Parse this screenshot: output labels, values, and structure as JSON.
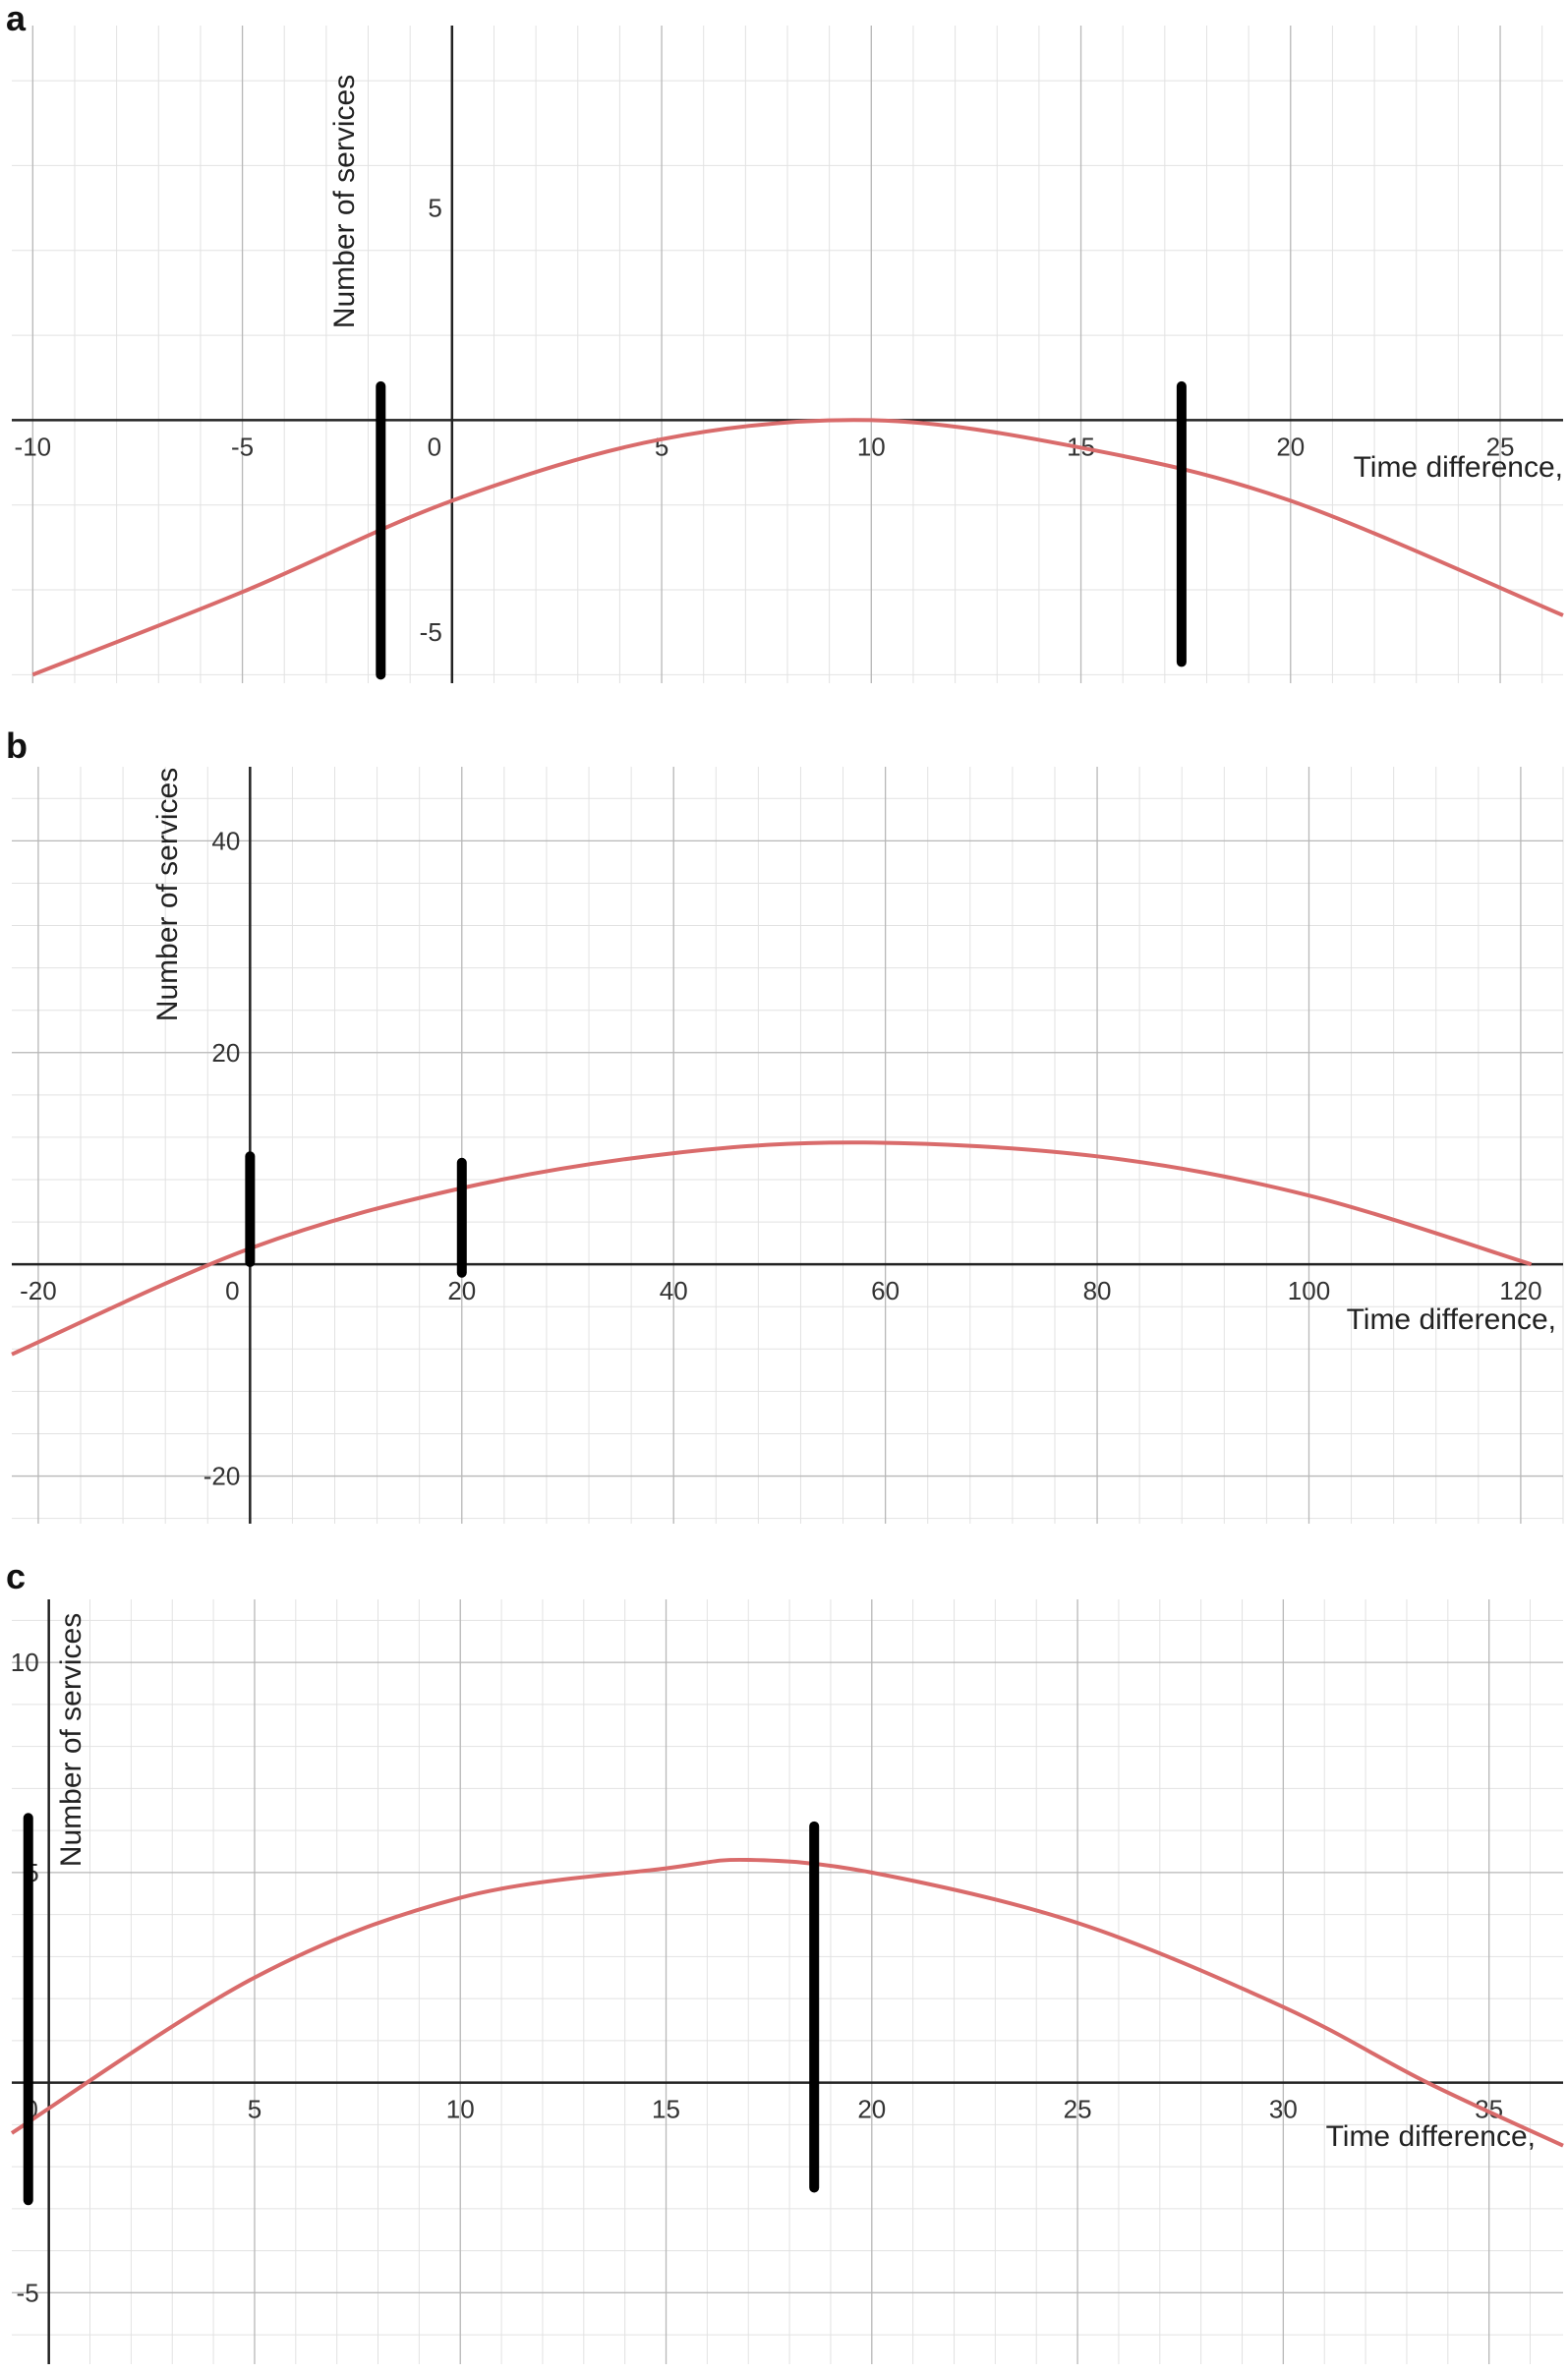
{
  "colors": {
    "curve": "#d96b6b",
    "axis": "#222222",
    "grid_major": "#b8b8b8",
    "grid_minor": "#e2e2e2",
    "marker": "#000000",
    "tick_text": "#333333"
  },
  "chart_data": [
    {
      "panel": "a",
      "type": "line",
      "xlabel": "Time difference,",
      "ylabel": "Number of services",
      "xlim": [
        -10.5,
        26.5
      ],
      "ylim": [
        -6.2,
        9.3
      ],
      "x_ticks": [
        -10,
        -5,
        0,
        5,
        10,
        15,
        20,
        25
      ],
      "x_tick_labels": [
        "-10",
        "-5",
        "0",
        "5",
        "10",
        "15",
        "20",
        "25"
      ],
      "y_ticks": [
        -5,
        5
      ],
      "y_tick_labels": [
        "-5",
        "5"
      ],
      "grid": true,
      "series": [
        {
          "x": [
            -10,
            -5,
            0,
            5,
            10,
            15,
            20,
            26.5
          ],
          "y": [
            -6.0,
            -4.05,
            -1.9,
            -0.45,
            0.0,
            -0.65,
            -1.9,
            -4.6
          ]
        }
      ],
      "markers": [
        {
          "x": -1.7,
          "y_range": [
            -6.0,
            0.8
          ]
        },
        {
          "x": 17.4,
          "y_range": [
            -5.7,
            0.8
          ]
        }
      ]
    },
    {
      "panel": "b",
      "type": "line",
      "xlabel": "Time difference,",
      "ylabel": "Number of services",
      "xlim": [
        -22.5,
        124
      ],
      "ylim": [
        -24.5,
        47
      ],
      "x_ticks": [
        -20,
        0,
        20,
        40,
        60,
        80,
        100,
        120
      ],
      "x_tick_labels": [
        "-20",
        "0",
        "20",
        "40",
        "60",
        "80",
        "100",
        "120"
      ],
      "y_ticks": [
        -20,
        20,
        40
      ],
      "y_tick_labels": [
        "-20",
        "20",
        "40"
      ],
      "grid": true,
      "series": [
        {
          "x": [
            -22.5,
            0,
            20,
            40,
            58,
            80,
            100,
            121
          ],
          "y": [
            -8.5,
            1.5,
            7.2,
            10.5,
            11.5,
            10.2,
            6.5,
            0.0
          ]
        }
      ],
      "markers": [
        {
          "x": 0,
          "y_range": [
            0.2,
            10.2
          ]
        },
        {
          "x": 20,
          "y_range": [
            -0.8,
            9.6
          ]
        }
      ]
    },
    {
      "panel": "c",
      "type": "line",
      "xlabel": "Time difference,",
      "ylabel": "Number of services",
      "xlim": [
        -0.9,
        36.8
      ],
      "ylim": [
        -6.7,
        11.5
      ],
      "x_ticks": [
        0,
        5,
        10,
        15,
        20,
        25,
        30,
        35
      ],
      "x_tick_labels": [
        "0",
        "5",
        "10",
        "15",
        "20",
        "25",
        "30",
        "35"
      ],
      "y_ticks": [
        -5,
        5,
        10
      ],
      "y_tick_labels": [
        "-5",
        "5",
        "10"
      ],
      "grid": true,
      "series": [
        {
          "x": [
            -0.9,
            5,
            10,
            15,
            17,
            20,
            25,
            30,
            33.5,
            36.8
          ],
          "y": [
            -1.2,
            2.5,
            4.4,
            5.1,
            5.3,
            5.0,
            3.8,
            1.8,
            0.0,
            -1.5
          ]
        }
      ],
      "markers": [
        {
          "x": -0.5,
          "y_range": [
            -2.8,
            6.3
          ]
        },
        {
          "x": 18.6,
          "y_range": [
            -2.5,
            6.1
          ]
        }
      ]
    }
  ]
}
